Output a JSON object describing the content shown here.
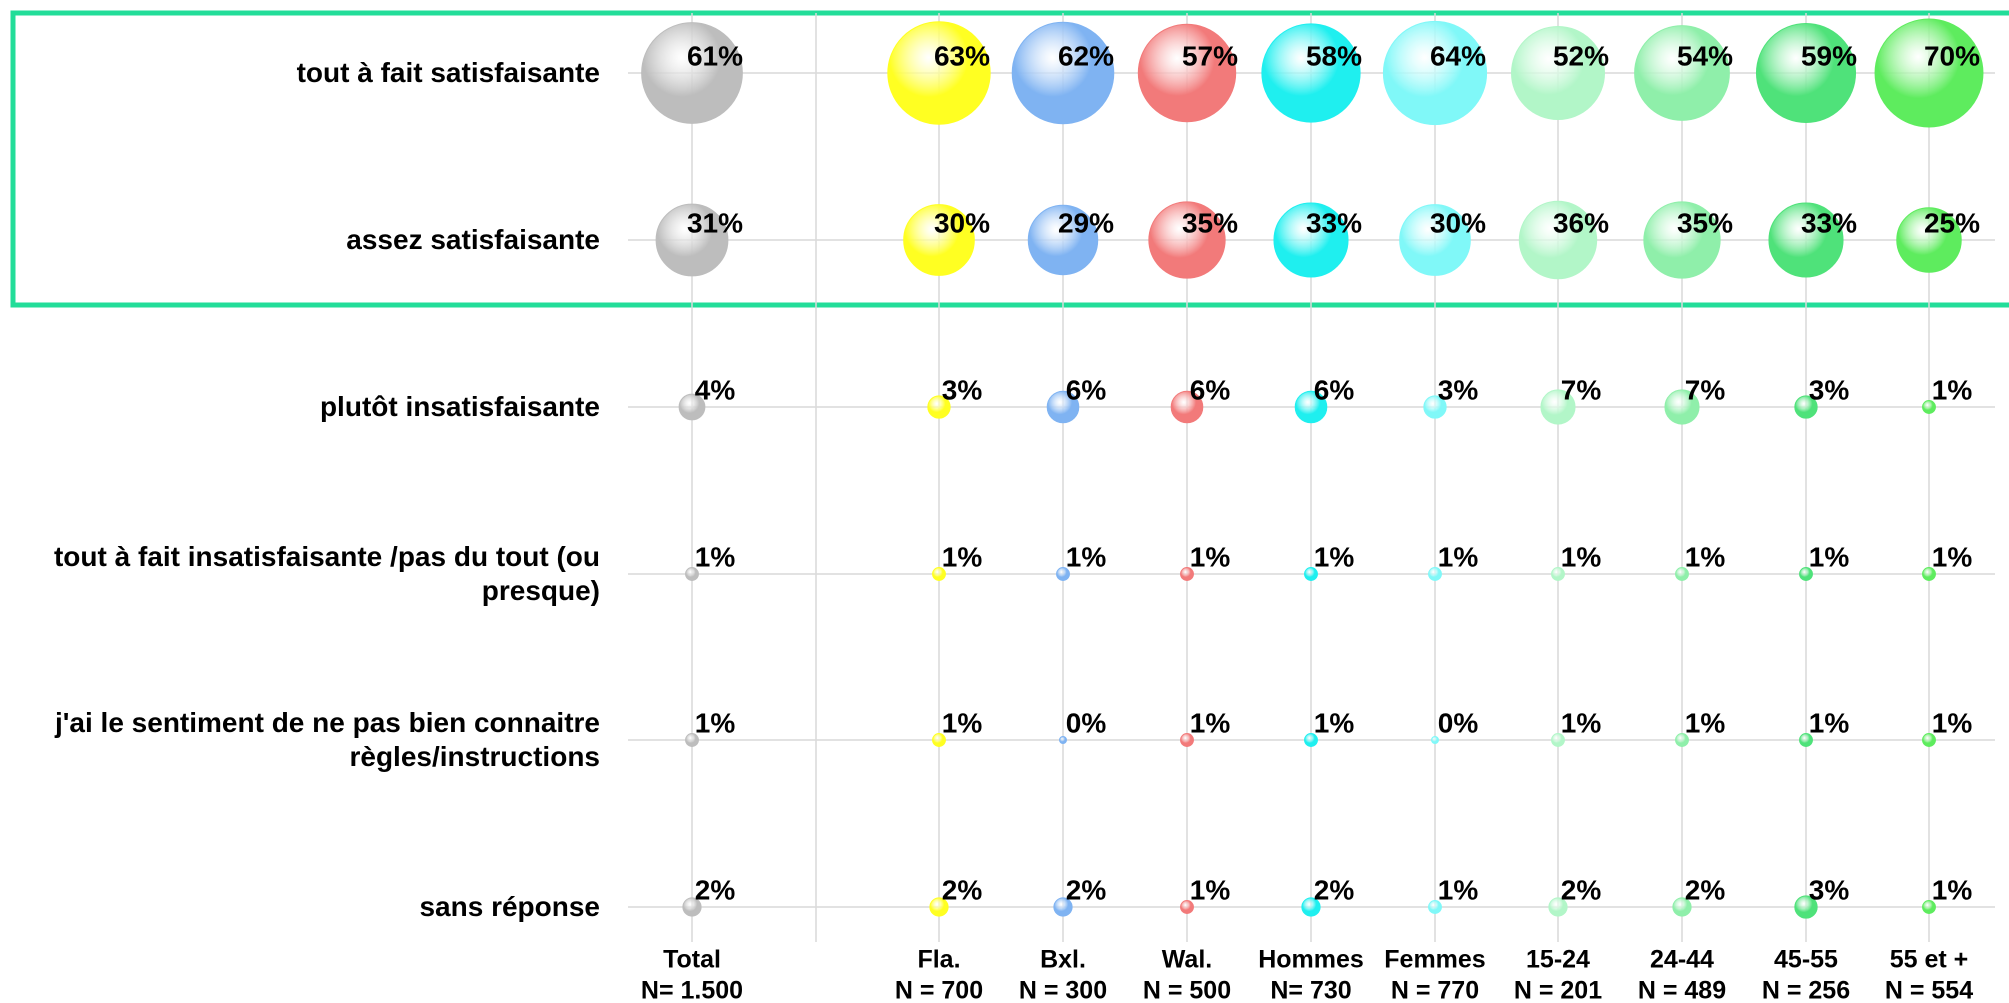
{
  "chart_data": {
    "type": "bubble",
    "categories": [
      "tout à fait satisfaisante",
      "assez satisfaisante",
      "plutôt insatisfaisante",
      "tout à fait insatisfaisante /pas du tout (ou\npresque)",
      "j'ai le sentiment de ne pas bien connaitre\nrègles/instructions",
      "sans réponse"
    ],
    "series": [
      {
        "name": "Total",
        "sample": "N= 1.500",
        "color": "#bdbdbd",
        "values": [
          61,
          31,
          4,
          1,
          1,
          2
        ],
        "value_labels": [
          "61%",
          "31%",
          "4%",
          "1%",
          "1%",
          "2%"
        ]
      },
      {
        "name": "Fla.",
        "sample": "N = 700",
        "color": "#ffff22",
        "values": [
          63,
          30,
          3,
          1,
          1,
          2
        ],
        "value_labels": [
          "63%",
          "30%",
          "3%",
          "1%",
          "1%",
          "2%"
        ]
      },
      {
        "name": "Bxl.",
        "sample": "N = 300",
        "color": "#7fb3f2",
        "values": [
          62,
          29,
          6,
          1,
          0,
          2
        ],
        "value_labels": [
          "62%",
          "29%",
          "6%",
          "1%",
          "0%",
          "2%"
        ]
      },
      {
        "name": "Wal.",
        "sample": "N = 500",
        "color": "#f27a7a",
        "values": [
          57,
          35,
          6,
          1,
          1,
          1
        ],
        "value_labels": [
          "57%",
          "35%",
          "6%",
          "1%",
          "1%",
          "1%"
        ]
      },
      {
        "name": "Hommes",
        "sample": "N= 730",
        "color": "#1fefef",
        "values": [
          58,
          33,
          6,
          1,
          1,
          2
        ],
        "value_labels": [
          "58%",
          "33%",
          "6%",
          "1%",
          "1%",
          "2%"
        ]
      },
      {
        "name": "Femmes",
        "sample": "N = 770",
        "color": "#80f8f8",
        "values": [
          64,
          30,
          3,
          1,
          0,
          1
        ],
        "value_labels": [
          "64%",
          "30%",
          "3%",
          "1%",
          "0%",
          "1%"
        ]
      },
      {
        "name": "15-24",
        "sample": "N = 201",
        "color": "#b2f6c8",
        "values": [
          52,
          36,
          7,
          1,
          1,
          2
        ],
        "value_labels": [
          "52%",
          "36%",
          "7%",
          "1%",
          "1%",
          "2%"
        ]
      },
      {
        "name": "24-44",
        "sample": "N = 489",
        "color": "#8fefaa",
        "values": [
          54,
          35,
          7,
          1,
          1,
          2
        ],
        "value_labels": [
          "54%",
          "35%",
          "7%",
          "1%",
          "1%",
          "2%"
        ]
      },
      {
        "name": "45-55",
        "sample": "N = 256",
        "color": "#4fe27a",
        "values": [
          59,
          33,
          3,
          1,
          1,
          3
        ],
        "value_labels": [
          "59%",
          "33%",
          "3%",
          "1%",
          "1%",
          "3%"
        ]
      },
      {
        "name": "55 et +",
        "sample": "N = 554",
        "color": "#5eec5e",
        "values": [
          70,
          25,
          1,
          1,
          1,
          1
        ],
        "value_labels": [
          "70%",
          "25%",
          "1%",
          "1%",
          "1%",
          "1%"
        ]
      }
    ]
  }
}
